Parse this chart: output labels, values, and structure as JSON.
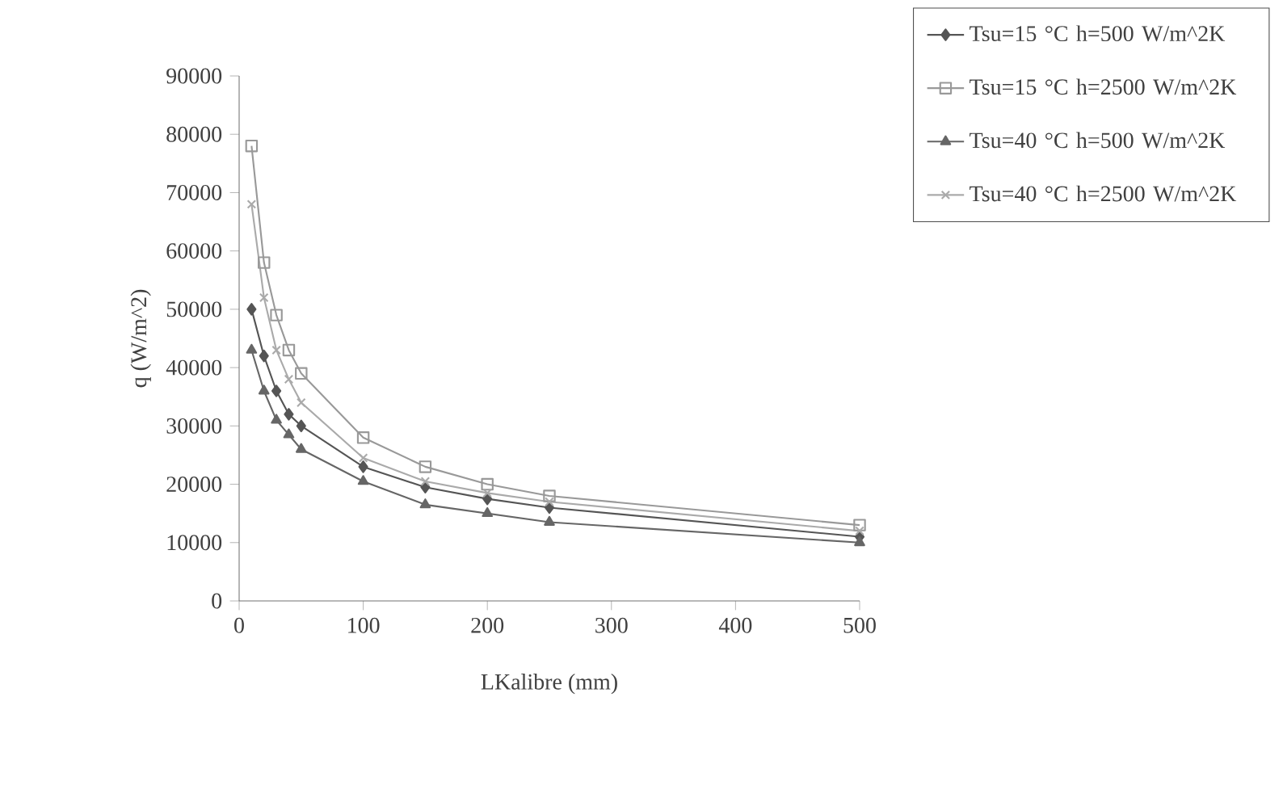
{
  "chart_data": {
    "type": "line",
    "xlabel": "LKalibre (mm)",
    "ylabel": "q (W/m^2)",
    "x": [
      10,
      20,
      30,
      40,
      50,
      100,
      150,
      200,
      250,
      500
    ],
    "xlim": [
      0,
      500
    ],
    "xticks": [
      0,
      100,
      200,
      300,
      400,
      500
    ],
    "ylim": [
      0,
      90000
    ],
    "yticks": [
      0,
      10000,
      20000,
      30000,
      40000,
      50000,
      60000,
      70000,
      80000,
      90000
    ],
    "grid": false,
    "legend": "right",
    "line_style": "solid",
    "series": [
      {
        "name": "Tsu=15 °C h=500 W/m^2K",
        "color": "#555555",
        "marker": "diamond",
        "values": [
          50000,
          42000,
          36000,
          32000,
          30000,
          23000,
          19500,
          17500,
          16000,
          11000
        ]
      },
      {
        "name": "Tsu=15 °C h=2500 W/m^2K",
        "color": "#999999",
        "marker": "square",
        "values": [
          78000,
          58000,
          49000,
          43000,
          39000,
          28000,
          23000,
          20000,
          18000,
          13000
        ]
      },
      {
        "name": "Tsu=40 °C h=500 W/m^2K",
        "color": "#666666",
        "marker": "triangle",
        "values": [
          43000,
          36000,
          31000,
          28500,
          26000,
          20500,
          16500,
          15000,
          13500,
          10000
        ]
      },
      {
        "name": "Tsu=40 °C h=2500 W/m^2K",
        "color": "#aaaaaa",
        "marker": "cross",
        "values": [
          68000,
          52000,
          43000,
          38000,
          34000,
          24500,
          20500,
          18500,
          17000,
          12000
        ]
      }
    ]
  }
}
